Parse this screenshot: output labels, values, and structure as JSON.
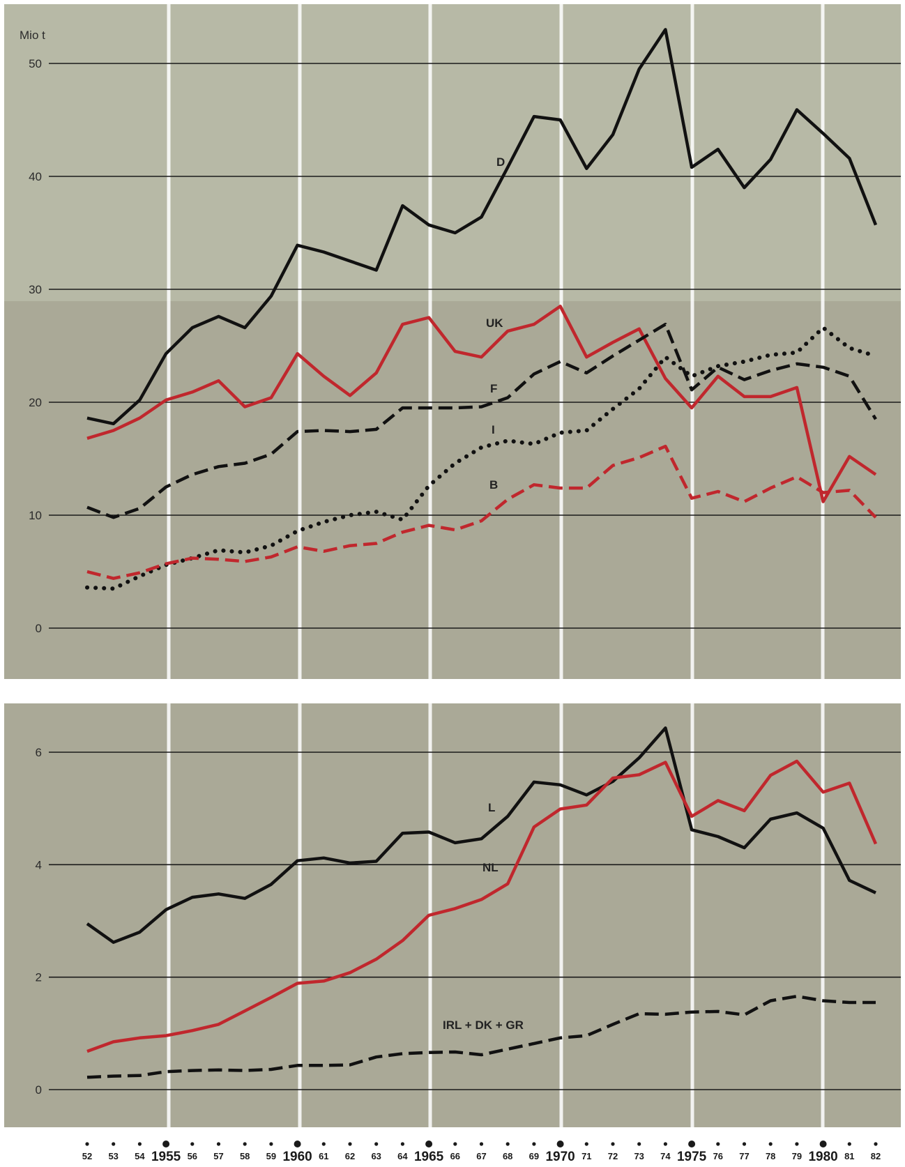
{
  "chart_data": [
    {
      "type": "line",
      "unit_label": "Mio t",
      "ylim": [
        0,
        53
      ],
      "yticks": [
        "0",
        "10",
        "20",
        "30",
        "40",
        "50"
      ],
      "grid": true,
      "x": [
        1952,
        1953,
        1954,
        1955,
        1956,
        1957,
        1958,
        1959,
        1960,
        1961,
        1962,
        1963,
        1964,
        1965,
        1966,
        1967,
        1968,
        1969,
        1970,
        1971,
        1972,
        1973,
        1974,
        1975,
        1976,
        1977,
        1978,
        1979,
        1980,
        1981,
        1982
      ],
      "series": [
        {
          "name": "D",
          "color": "#111111",
          "style": "solid",
          "values": [
            18.6,
            18.1,
            20.2,
            24.3,
            26.6,
            27.6,
            26.6,
            29.4,
            33.9,
            33.3,
            32.5,
            31.7,
            37.4,
            35.7,
            35.0,
            36.4,
            40.8,
            45.3,
            45.0,
            40.7,
            43.7,
            49.5,
            53.0,
            40.8,
            42.4,
            39.0,
            41.5,
            45.9,
            43.8,
            41.6,
            35.7
          ]
        },
        {
          "name": "UK",
          "color": "#c0272d",
          "style": "solid",
          "values": [
            16.8,
            17.5,
            18.6,
            20.2,
            20.9,
            21.9,
            19.6,
            20.4,
            24.3,
            22.3,
            20.6,
            22.6,
            26.9,
            27.5,
            24.5,
            24.0,
            26.3,
            26.9,
            28.5,
            24.0,
            25.3,
            26.5,
            22.1,
            19.5,
            22.3,
            20.5,
            20.5,
            21.3,
            11.2,
            15.2,
            13.6
          ]
        },
        {
          "name": "F",
          "color": "#111111",
          "style": "dashed",
          "values": [
            10.7,
            9.8,
            10.6,
            12.5,
            13.6,
            14.3,
            14.6,
            15.4,
            17.4,
            17.5,
            17.4,
            17.6,
            19.5,
            19.5,
            19.5,
            19.6,
            20.4,
            22.5,
            23.6,
            22.6,
            24.1,
            25.5,
            26.9,
            21.1,
            23.1,
            22.0,
            22.8,
            23.4,
            23.1,
            22.3,
            18.5
          ]
        },
        {
          "name": "I",
          "color": "#111111",
          "style": "dotted",
          "values": [
            3.6,
            3.5,
            4.6,
            5.6,
            6.2,
            6.9,
            6.7,
            7.3,
            8.6,
            9.4,
            10.0,
            10.3,
            9.6,
            12.6,
            14.6,
            16.0,
            16.6,
            16.3,
            17.3,
            17.5,
            19.4,
            21.2,
            24.0,
            22.3,
            23.2,
            23.6,
            24.2,
            24.4,
            26.6,
            24.8,
            24.1
          ]
        },
        {
          "name": "B",
          "color": "#c0272d",
          "style": "dashed",
          "values": [
            5.0,
            4.4,
            4.9,
            5.7,
            6.2,
            6.1,
            5.9,
            6.3,
            7.2,
            6.8,
            7.3,
            7.5,
            8.5,
            9.1,
            8.7,
            9.5,
            11.4,
            12.7,
            12.4,
            12.4,
            14.4,
            15.1,
            16.1,
            11.5,
            12.1,
            11.2,
            12.4,
            13.4,
            12.0,
            12.2,
            9.8
          ]
        }
      ]
    },
    {
      "type": "line",
      "ylim": [
        -0.4,
        6.9
      ],
      "yticks": [
        "0",
        "2",
        "4",
        "6"
      ],
      "grid": true,
      "x": [
        1952,
        1953,
        1954,
        1955,
        1956,
        1957,
        1958,
        1959,
        1960,
        1961,
        1962,
        1963,
        1964,
        1965,
        1966,
        1967,
        1968,
        1969,
        1970,
        1971,
        1972,
        1973,
        1974,
        1975,
        1976,
        1977,
        1978,
        1979,
        1980,
        1981,
        1982
      ],
      "series": [
        {
          "name": "L",
          "color": "#111111",
          "style": "solid",
          "values": [
            2.95,
            2.62,
            2.8,
            3.2,
            3.42,
            3.48,
            3.4,
            3.65,
            4.07,
            4.12,
            4.03,
            4.06,
            4.56,
            4.58,
            4.39,
            4.46,
            4.86,
            5.47,
            5.42,
            5.24,
            5.48,
            5.9,
            6.43,
            4.62,
            4.5,
            4.3,
            4.81,
            4.92,
            4.65,
            3.72,
            3.5
          ]
        },
        {
          "name": "NL",
          "color": "#c0272d",
          "style": "solid",
          "values": [
            0.68,
            0.85,
            0.92,
            0.96,
            1.05,
            1.16,
            1.4,
            1.64,
            1.89,
            1.93,
            2.08,
            2.32,
            2.65,
            3.1,
            3.22,
            3.38,
            3.66,
            4.67,
            4.99,
            5.06,
            5.54,
            5.6,
            5.82,
            4.86,
            5.14,
            4.96,
            5.59,
            5.84,
            5.29,
            5.45,
            4.37
          ]
        },
        {
          "name": "IRL + DK + GR",
          "color": "#111111",
          "style": "dashed",
          "values": [
            0.22,
            0.24,
            0.25,
            0.32,
            0.34,
            0.35,
            0.34,
            0.36,
            0.43,
            0.43,
            0.44,
            0.58,
            0.64,
            0.66,
            0.67,
            0.62,
            0.72,
            0.82,
            0.92,
            0.96,
            1.16,
            1.35,
            1.34,
            1.38,
            1.39,
            1.33,
            1.58,
            1.66,
            1.58,
            1.55,
            1.55
          ]
        }
      ]
    }
  ],
  "x_axis": {
    "labels": [
      "52",
      "53",
      "54",
      "1955",
      "56",
      "57",
      "58",
      "59",
      "1960",
      "61",
      "62",
      "63",
      "64",
      "1965",
      "66",
      "67",
      "68",
      "69",
      "1970",
      "71",
      "72",
      "73",
      "74",
      "1975",
      "76",
      "77",
      "78",
      "79",
      "1980",
      "81",
      "82"
    ]
  }
}
